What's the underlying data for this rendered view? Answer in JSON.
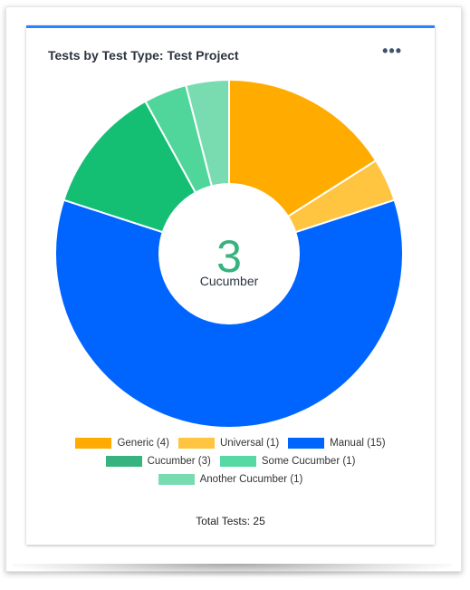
{
  "card": {
    "title": "Tests by Test Type: Test Project",
    "menu_label": "•••",
    "total_label": "Total Tests: 25"
  },
  "center": {
    "value": "3",
    "label": "Cucumber"
  },
  "colors": {
    "accent": "#2684ff",
    "center_value": "#36b37e"
  },
  "chart_data": {
    "type": "pie",
    "donut": true,
    "categories": [
      "Generic",
      "Universal",
      "Manual",
      "Cucumber",
      "Some Cucumber",
      "Another Cucumber"
    ],
    "values": [
      4,
      1,
      15,
      3,
      1,
      1
    ],
    "colors": [
      "#ffab00",
      "#ffc440",
      "#0065ff",
      "#14bf74",
      "#50d69b",
      "#79dcb1"
    ],
    "legend": [
      [
        "Generic (4)",
        "Universal (1)",
        "Manual (15)"
      ],
      [
        "Cucumber (3)",
        "Some Cucumber (1)"
      ],
      [
        "Another Cucumber (1)"
      ]
    ],
    "legend_colors": [
      [
        "#ffab00",
        "#ffc440",
        "#0065ff"
      ],
      [
        "#36b37e",
        "#57d9a3"
      ],
      [
        "#79dcb1"
      ]
    ],
    "legend_placement": "bottom",
    "highlighted": "Cucumber"
  }
}
